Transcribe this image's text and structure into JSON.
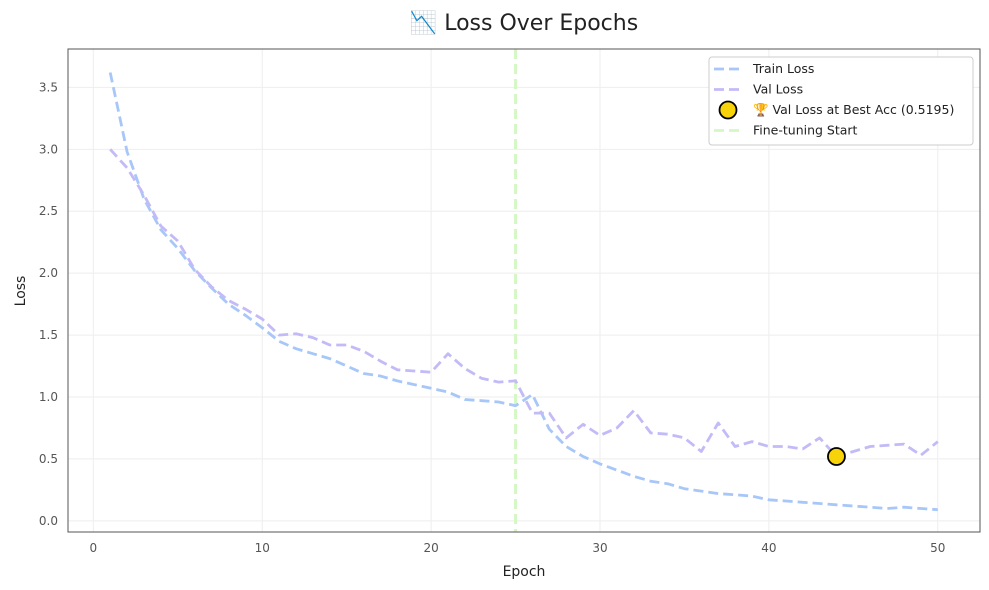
{
  "chart_data": {
    "type": "line",
    "title": "📉 Loss Over Epochs",
    "xlabel": "Epoch",
    "ylabel": "Loss",
    "xlim": [
      -1.5,
      52.5
    ],
    "ylim": [
      -0.09,
      3.81
    ],
    "xticks": [
      0,
      10,
      20,
      30,
      40,
      50
    ],
    "xtick_labels": [
      "0",
      "10",
      "20",
      "30",
      "40",
      "50"
    ],
    "yticks": [
      0.0,
      0.5,
      1.0,
      1.5,
      2.0,
      2.5,
      3.0,
      3.5
    ],
    "ytick_labels": [
      "0.0",
      "0.5",
      "1.0",
      "1.5",
      "2.0",
      "2.5",
      "3.0",
      "3.5"
    ],
    "grid": true,
    "legend_position": "top-right",
    "x": [
      1,
      2,
      3,
      4,
      5,
      6,
      7,
      8,
      9,
      10,
      11,
      12,
      13,
      14,
      15,
      16,
      17,
      18,
      19,
      20,
      21,
      22,
      23,
      24,
      25,
      26,
      27,
      28,
      29,
      30,
      31,
      32,
      33,
      34,
      35,
      36,
      37,
      38,
      39,
      40,
      41,
      42,
      43,
      44,
      45,
      46,
      47,
      48,
      49,
      50
    ],
    "series": [
      {
        "name": "Train Loss",
        "color": "#a7c7f9",
        "values": [
          3.62,
          2.98,
          2.6,
          2.35,
          2.2,
          2.02,
          1.88,
          1.75,
          1.66,
          1.56,
          1.45,
          1.39,
          1.35,
          1.31,
          1.25,
          1.19,
          1.17,
          1.13,
          1.1,
          1.07,
          1.04,
          0.98,
          0.97,
          0.96,
          0.93,
          1.02,
          0.74,
          0.6,
          0.52,
          0.46,
          0.41,
          0.36,
          0.32,
          0.3,
          0.26,
          0.24,
          0.22,
          0.21,
          0.2,
          0.17,
          0.16,
          0.15,
          0.14,
          0.13,
          0.12,
          0.11,
          0.1,
          0.11,
          0.1,
          0.09
        ]
      },
      {
        "name": "Val Loss",
        "color": "#c2bbf7",
        "values": [
          3.0,
          2.85,
          2.63,
          2.38,
          2.26,
          2.03,
          1.89,
          1.78,
          1.71,
          1.63,
          1.5,
          1.51,
          1.48,
          1.42,
          1.42,
          1.37,
          1.29,
          1.22,
          1.21,
          1.2,
          1.35,
          1.23,
          1.15,
          1.12,
          1.13,
          0.87,
          0.87,
          0.67,
          0.78,
          0.69,
          0.75,
          0.89,
          0.71,
          0.7,
          0.67,
          0.56,
          0.79,
          0.6,
          0.64,
          0.6,
          0.6,
          0.58,
          0.67,
          0.52,
          0.56,
          0.6,
          0.61,
          0.62,
          0.53,
          0.64
        ]
      }
    ],
    "markers": [
      {
        "name": "🏆 Val Loss at Best Acc (0.5195)",
        "x": 44,
        "y": 0.5195,
        "color": "#f7d30a",
        "edge_color": "#000000"
      }
    ],
    "vlines": [
      {
        "name": "Fine-tuning Start",
        "x": 25,
        "color": "#d4f8c4"
      }
    ]
  }
}
